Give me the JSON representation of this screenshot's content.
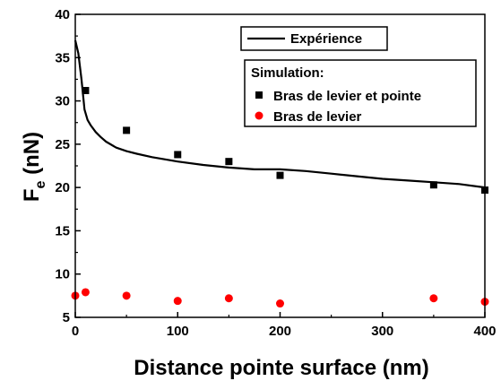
{
  "chart_data": {
    "type": "scatter",
    "xlabel": "Distance pointe surface (nm)",
    "ylabel_main": "F",
    "ylabel_sub": "e",
    "ylabel_unit": " (nN)",
    "xlim": [
      0,
      400
    ],
    "ylim": [
      5,
      40
    ],
    "x_ticks": [
      0,
      100,
      200,
      300,
      400
    ],
    "y_ticks": [
      5,
      10,
      15,
      20,
      25,
      30,
      35,
      40
    ],
    "grid": false,
    "legend_experiment": {
      "label": "Expérience",
      "placement": "top-right"
    },
    "legend_simulation": {
      "title": "Simulation:",
      "placement": "upper-right"
    },
    "series": [
      {
        "name": "Expérience",
        "style": "line",
        "color": "#000000",
        "x": [
          0,
          3,
          6,
          9,
          12,
          15,
          20,
          25,
          30,
          40,
          50,
          60,
          75,
          100,
          125,
          150,
          175,
          200,
          225,
          250,
          275,
          300,
          325,
          350,
          375,
          400
        ],
        "y": [
          37.0,
          35.5,
          32.5,
          29.0,
          27.8,
          27.2,
          26.4,
          25.8,
          25.3,
          24.6,
          24.2,
          23.9,
          23.5,
          23.0,
          22.6,
          22.3,
          22.1,
          22.1,
          21.9,
          21.6,
          21.3,
          21.0,
          20.8,
          20.6,
          20.4,
          20.0
        ]
      },
      {
        "name": "Bras de levier et pointe",
        "style": "square",
        "color": "#000000",
        "x": [
          10,
          50,
          100,
          150,
          200,
          350,
          400
        ],
        "y": [
          31.2,
          26.6,
          23.8,
          23.0,
          21.4,
          20.3,
          19.7
        ]
      },
      {
        "name": "Bras de levier",
        "style": "circle",
        "color": "#ff0000",
        "x": [
          0,
          10,
          50,
          100,
          150,
          200,
          350,
          400
        ],
        "y": [
          7.5,
          7.9,
          7.5,
          6.9,
          7.2,
          6.6,
          7.2,
          6.8
        ]
      }
    ]
  }
}
